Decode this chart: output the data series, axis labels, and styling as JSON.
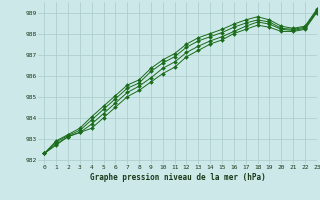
{
  "xlabel": "Graphe pression niveau de la mer (hPa)",
  "bg_color": "#cce8e8",
  "grid_color": "#aacccc",
  "line_color": "#1a6b1a",
  "marker_color": "#1a6b1a",
  "ylim": [
    981.8,
    989.5
  ],
  "xlim": [
    -0.5,
    23
  ],
  "yticks": [
    982,
    983,
    984,
    985,
    986,
    987,
    988,
    989
  ],
  "xticks": [
    0,
    1,
    2,
    3,
    4,
    5,
    6,
    7,
    8,
    9,
    10,
    11,
    12,
    13,
    14,
    15,
    16,
    17,
    18,
    19,
    20,
    21,
    22,
    23
  ],
  "series": [
    [
      982.3,
      982.7,
      983.1,
      983.3,
      983.5,
      984.0,
      984.5,
      985.0,
      985.3,
      985.7,
      986.1,
      986.4,
      986.9,
      987.2,
      987.5,
      987.7,
      988.0,
      988.2,
      988.4,
      988.3,
      988.1,
      988.1,
      988.2,
      989.0
    ],
    [
      982.3,
      982.75,
      983.1,
      983.3,
      983.7,
      984.2,
      984.7,
      985.2,
      985.5,
      985.9,
      986.35,
      986.65,
      987.1,
      987.4,
      987.65,
      987.85,
      988.1,
      988.35,
      988.55,
      988.45,
      988.2,
      988.15,
      988.25,
      989.05
    ],
    [
      982.3,
      982.85,
      983.15,
      983.4,
      983.9,
      984.4,
      984.9,
      985.4,
      985.65,
      986.2,
      986.6,
      986.9,
      987.35,
      987.65,
      987.85,
      988.05,
      988.3,
      988.5,
      988.65,
      988.55,
      988.25,
      988.2,
      988.3,
      989.1
    ],
    [
      982.3,
      982.9,
      983.2,
      983.5,
      984.05,
      984.55,
      985.05,
      985.55,
      985.8,
      986.35,
      986.75,
      987.05,
      987.5,
      987.8,
      988.0,
      988.2,
      988.45,
      988.65,
      988.8,
      988.65,
      988.35,
      988.25,
      988.35,
      989.15
    ]
  ]
}
